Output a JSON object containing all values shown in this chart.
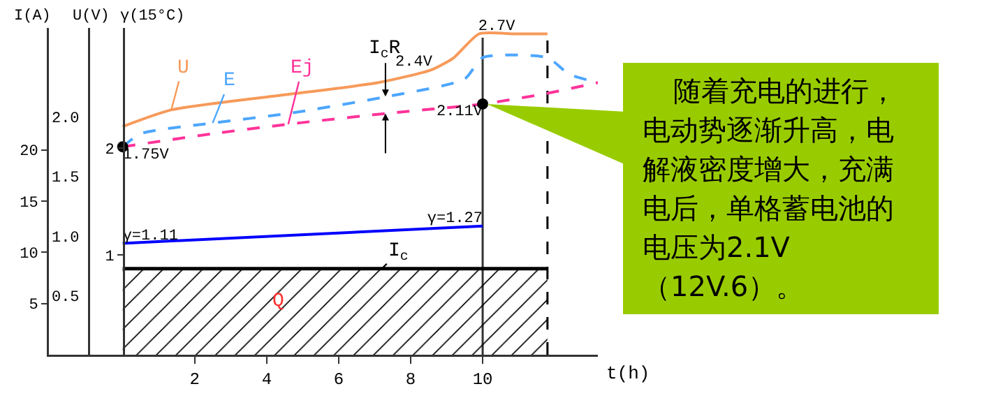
{
  "chart_data": {
    "type": "line",
    "xlabel": "t(h)",
    "ylabel": "I(A)",
    "y2label": "U(V)",
    "y3label": "γ(15°C)",
    "xlim": [
      -2.05,
      13.2
    ],
    "xticks": [
      2,
      4,
      6,
      8,
      10
    ],
    "ylim": [
      0,
      31.9
    ],
    "yticks": [
      5,
      10,
      15,
      20
    ],
    "y2lim": [
      0,
      2.75
    ],
    "y2ticks": [
      0.5,
      {
        "value": 1,
        "label": "1.0"
      },
      1.5,
      {
        "value": 2,
        "label": "2.0"
      }
    ],
    "y3lim": [
      0.07,
      3.12
    ],
    "y3ticks": [
      1,
      2
    ],
    "grid": false,
    "series": [
      {
        "name": "U",
        "color": "#f79a5a",
        "line_style": "solid",
        "axis": "y2",
        "x": [
          0,
          1.35,
          4.3,
          7.1,
          8.6,
          9.2,
          9.9,
          10.9,
          11.8
        ],
        "values": [
          1.92,
          2.06,
          2.18,
          2.29,
          2.4,
          2.5,
          2.7,
          2.7,
          2.7
        ],
        "value_labels": [
          null,
          null,
          null,
          null,
          "2.4V",
          null,
          null,
          "2.7V",
          null
        ]
      },
      {
        "name": "E",
        "color": "#4da6ff",
        "line_style": "dashed",
        "axis": "y2",
        "x": [
          0,
          0.5,
          2.5,
          4.6,
          7.3,
          9.5,
          10,
          11.8,
          12.4,
          13.2
        ],
        "values": [
          1.75,
          1.86,
          1.95,
          2.03,
          2.17,
          2.32,
          2.5,
          2.5,
          2.36,
          2.29
        ]
      },
      {
        "name": "Ej",
        "color": "#ff3399",
        "line_style": "dashed",
        "axis": "y2",
        "x": [
          0,
          2.5,
          4.6,
          7.3,
          10,
          11.8,
          13.2
        ],
        "values": [
          1.75,
          1.86,
          1.94,
          2.03,
          2.11,
          2.2,
          2.29
        ],
        "value_labels": [
          "1.75V",
          null,
          null,
          null,
          "2.11V",
          null,
          null
        ]
      },
      {
        "type": "scatter",
        "color": "#000000",
        "marker": "circle",
        "axis": "y2",
        "x": [
          0,
          10
        ],
        "values": [
          1.75,
          2.11
        ]
      },
      {
        "color": "#0000ff",
        "line_style": "solid",
        "axis": "y3",
        "x": [
          0,
          10
        ],
        "values": [
          1.11,
          1.27
        ],
        "value_labels": [
          "γ=1.11",
          "γ=1.27"
        ]
      },
      {
        "name": "I$_{c}$",
        "type": "area",
        "color": "#000000",
        "axis": "y",
        "x": [
          0,
          11.8
        ],
        "values": [
          8.4,
          8.4
        ]
      }
    ],
    "ref_lines": [
      {
        "axis": "x",
        "value": 10,
        "color": "#333333",
        "line_style": "solid"
      },
      {
        "axis": "x",
        "value": 11.8,
        "color": "#000000",
        "line_style": "dashed"
      }
    ],
    "annotations": [
      {
        "text": "I$_{c}$R",
        "x": 7.3,
        "y": 25.2
      },
      "Q",
      "随着充电的进行，电动势逐渐升高，电解液密度增大，充满电后，单格蓄电池的电压为2.1V（12V.6）。"
    ]
  }
}
